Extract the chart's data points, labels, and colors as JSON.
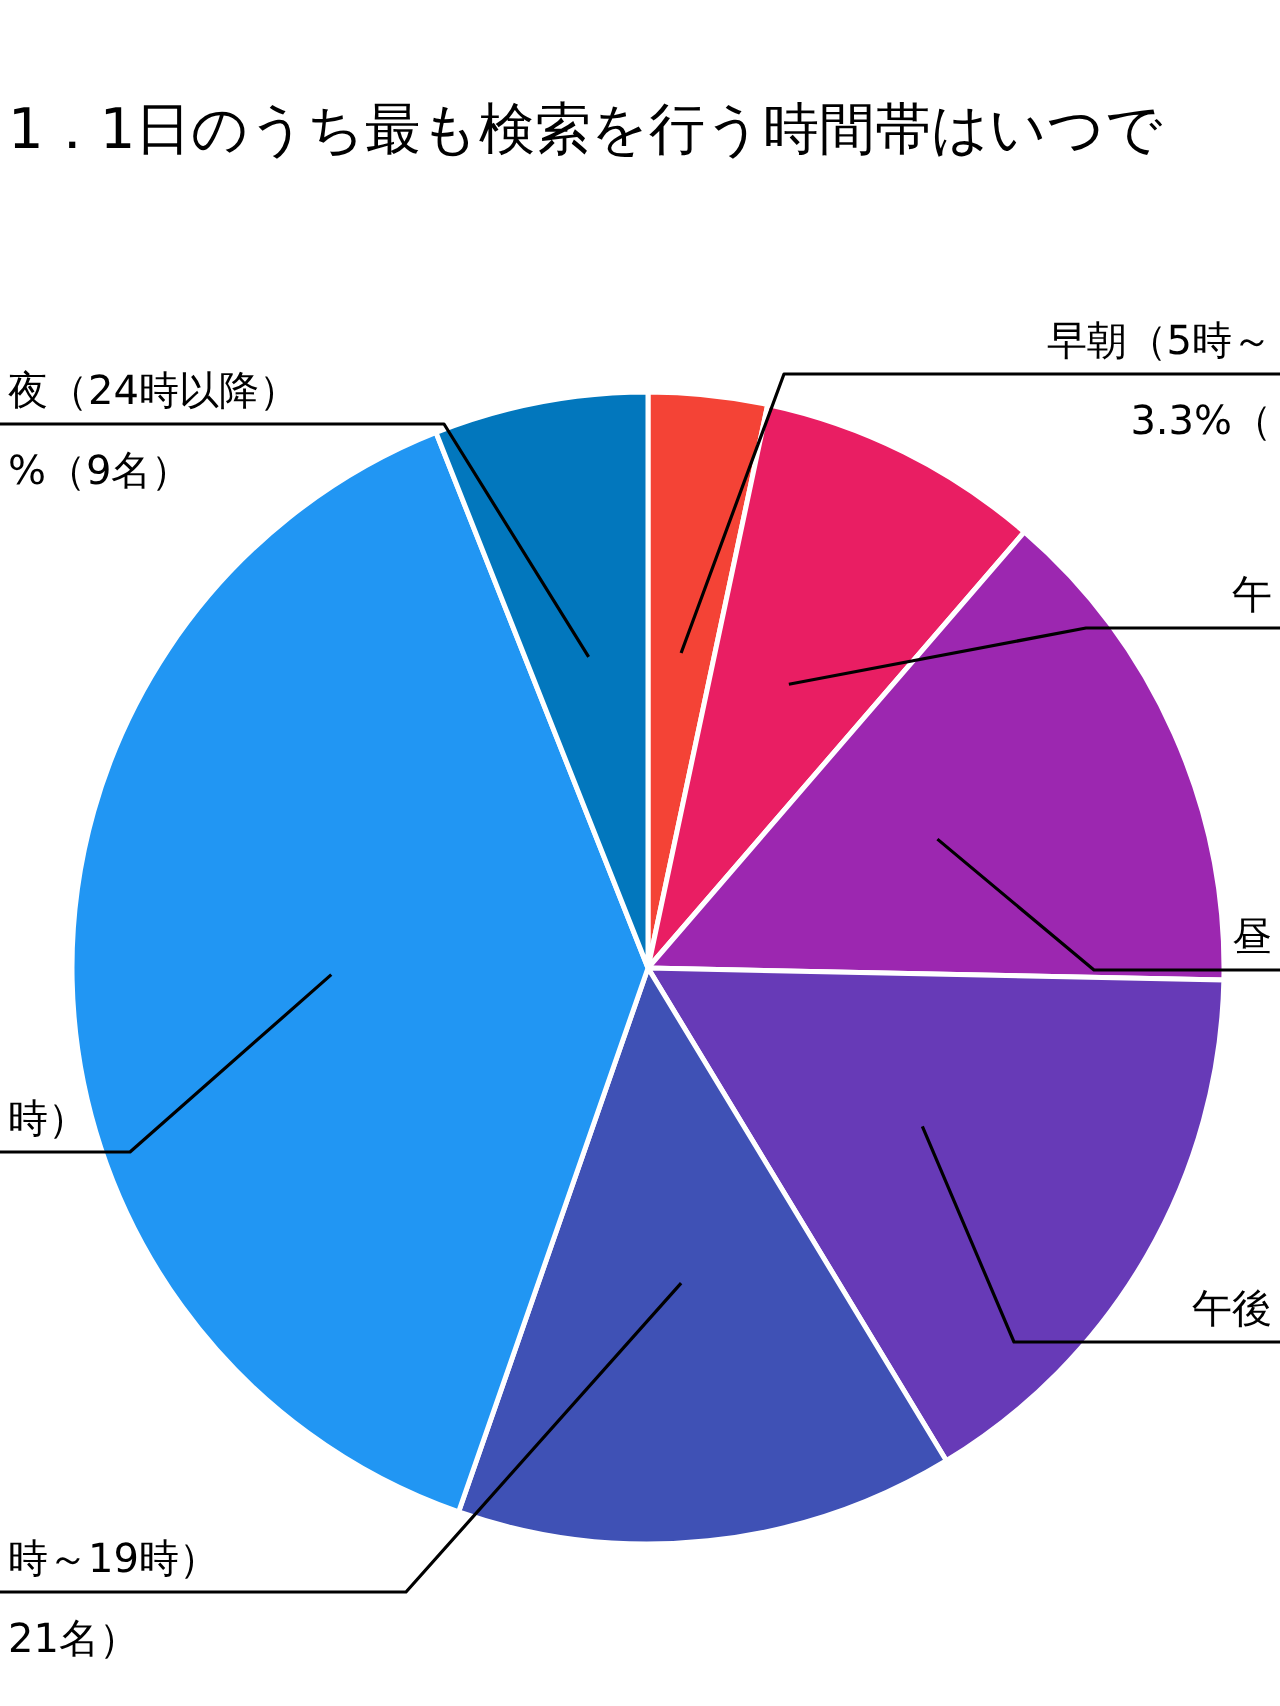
{
  "chart_data": {
    "type": "pie",
    "title": "1．1日のうち最も検索を行う時間帯はいつで",
    "categories": [
      "早朝（5時～",
      "午",
      "昼",
      "午後",
      "時～19時）",
      "時）",
      "夜（24時以降）"
    ],
    "values": [
      5,
      12,
      21,
      24,
      21,
      58,
      9
    ],
    "colors": [
      "#f44336",
      "#e91e63",
      "#9c27b0",
      "#673ab7",
      "#3f51b5",
      "#2196f3",
      "#0277bd"
    ],
    "value_labels": [
      null,
      null,
      null,
      null,
      "21名）",
      null,
      "%（9名）"
    ],
    "annotations": [
      "3.3%（"
    ]
  }
}
